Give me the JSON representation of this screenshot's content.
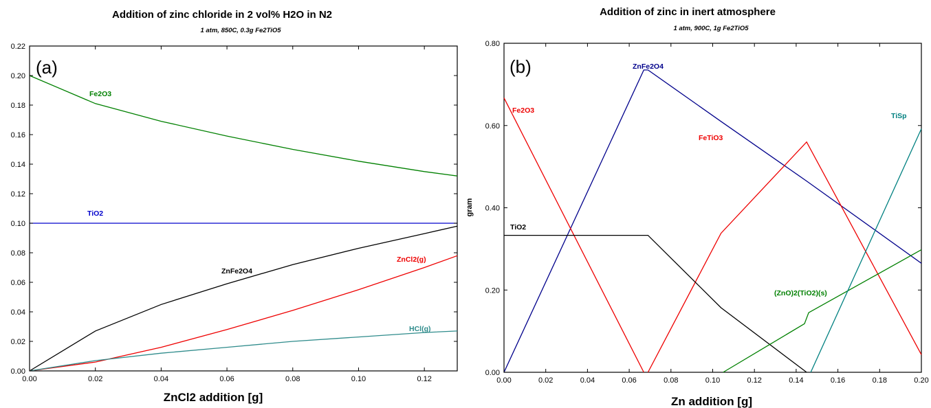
{
  "chart_data": [
    {
      "type": "line",
      "panel_label": "(a)",
      "title": "Addition of zinc chloride in 2 vol% H2O in N2",
      "subtitle": "1 atm, 850C, 0.3g Fe2TiO5",
      "xlabel": "ZnCl2 addition [g]",
      "ylabel": "",
      "xlim": [
        0,
        0.13
      ],
      "ylim": [
        0,
        0.22
      ],
      "xticks": [
        "0.00",
        "0.02",
        "0.04",
        "0.06",
        "0.08",
        "0.10",
        "0.12"
      ],
      "yticks": [
        "0.00",
        "0.02",
        "0.04",
        "0.06",
        "0.08",
        "0.10",
        "0.12",
        "0.14",
        "0.16",
        "0.18",
        "0.20",
        "0.22"
      ],
      "series": [
        {
          "name": "Fe2O3",
          "color": "#008000",
          "x": [
            0,
            0.02,
            0.04,
            0.06,
            0.08,
            0.1,
            0.12,
            0.13
          ],
          "y": [
            0.2,
            0.181,
            0.169,
            0.159,
            0.15,
            0.142,
            0.135,
            0.132
          ]
        },
        {
          "name": "TiO2",
          "color": "#0000cc",
          "x": [
            0,
            0.13
          ],
          "y": [
            0.1,
            0.1
          ]
        },
        {
          "name": "ZnFe2O4",
          "color": "#000000",
          "x": [
            0,
            0.02,
            0.04,
            0.06,
            0.08,
            0.1,
            0.12,
            0.13
          ],
          "y": [
            0,
            0.027,
            0.045,
            0.059,
            0.072,
            0.083,
            0.093,
            0.098
          ]
        },
        {
          "name": "ZnCl2(g)",
          "color": "#ee0000",
          "x": [
            0,
            0.02,
            0.04,
            0.06,
            0.08,
            0.1,
            0.12,
            0.13
          ],
          "y": [
            0,
            0.006,
            0.016,
            0.028,
            0.041,
            0.055,
            0.07,
            0.078
          ]
        },
        {
          "name": "HCl(g)",
          "color": "#2e8b8b",
          "x": [
            0,
            0.02,
            0.04,
            0.06,
            0.08,
            0.1,
            0.12,
            0.13
          ],
          "y": [
            0,
            0.007,
            0.012,
            0.016,
            0.02,
            0.023,
            0.026,
            0.027
          ]
        }
      ]
    },
    {
      "type": "line",
      "panel_label": "(b)",
      "title": "Addition of zinc in inert atmosphere",
      "subtitle": "1 atm, 900C, 1g Fe2TiO5",
      "xlabel": "Zn addition [g]",
      "ylabel": "gram",
      "xlim": [
        0,
        0.2
      ],
      "ylim": [
        0,
        0.8
      ],
      "xticks": [
        "0.00",
        "0.02",
        "0.04",
        "0.06",
        "0.08",
        "0.10",
        "0.12",
        "0.14",
        "0.16",
        "0.18",
        "0.20"
      ],
      "yticks": [
        "0.00",
        "0.20",
        "0.40",
        "0.60",
        "0.80"
      ],
      "series": [
        {
          "name": "ZnFe2O4",
          "color": "#00008b",
          "x": [
            0,
            0.067,
            0.069,
            0.104,
            0.145,
            0.2
          ],
          "y": [
            0,
            0.735,
            0.735,
            0.61,
            0.465,
            0.265
          ]
        },
        {
          "name": "Fe2O3",
          "color": "#ee0000",
          "x": [
            0,
            0.067
          ],
          "y": [
            0.667,
            0
          ]
        },
        {
          "name": "FeTiO3",
          "color": "#ee0000",
          "x": [
            0.069,
            0.104,
            0.145,
            0.2
          ],
          "y": [
            0,
            0.338,
            0.56,
            0.043
          ]
        },
        {
          "name": "TiO2",
          "color": "#000000",
          "x": [
            0,
            0.069,
            0.104,
            0.145
          ],
          "y": [
            0.333,
            0.333,
            0.157,
            0
          ]
        },
        {
          "name": "(ZnO)2(TiO2)(s)",
          "color": "#008000",
          "x": [
            0.105,
            0.144,
            0.146,
            0.2
          ],
          "y": [
            0,
            0.118,
            0.145,
            0.298
          ]
        },
        {
          "name": "TiSp",
          "color": "#008080",
          "x": [
            0.147,
            0.2
          ],
          "y": [
            0,
            0.592
          ]
        }
      ]
    }
  ]
}
